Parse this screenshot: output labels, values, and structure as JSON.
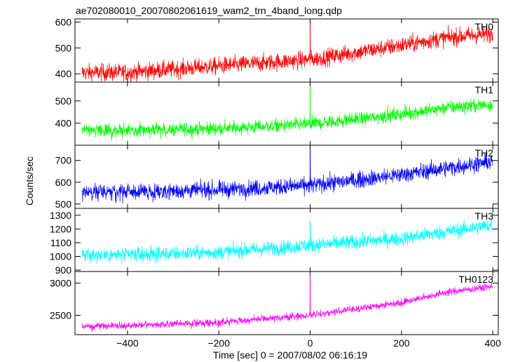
{
  "chart_data": {
    "type": "line",
    "title": "ae702080010_20070802061619_wam2_trn_4band_long.qdp",
    "xlabel": "Time [sec] 0 = 2007/08/02 06:16:19",
    "ylabel": "Counts/sec",
    "xlim": [
      -515,
      412
    ],
    "x_ticks": [
      "-400",
      "-200",
      "0",
      "200",
      "400"
    ],
    "grid": false,
    "panels": [
      {
        "name": "TH0",
        "color": "#ff0000",
        "ylim": [
          368,
          612
        ],
        "y_ticks": [
          "400",
          "500",
          "600"
        ],
        "trend": [
          [
            -500,
            405
          ],
          [
            -400,
            405
          ],
          [
            -200,
            430
          ],
          [
            0,
            455
          ],
          [
            200,
            510
          ],
          [
            300,
            540
          ],
          [
            400,
            555
          ]
        ],
        "noise": 24,
        "spike": {
          "x": 0,
          "y": 612
        }
      },
      {
        "name": "TH1",
        "color": "#00ff00",
        "ylim": [
          300,
          585
        ],
        "y_ticks": [
          "400",
          "500"
        ],
        "trend": [
          [
            -500,
            365
          ],
          [
            -400,
            365
          ],
          [
            -200,
            375
          ],
          [
            0,
            395
          ],
          [
            200,
            440
          ],
          [
            300,
            470
          ],
          [
            400,
            485
          ]
        ],
        "noise": 22,
        "spike": {
          "x": 0,
          "y": 585
        }
      },
      {
        "name": "TH2",
        "color": "#0000ff",
        "ylim": [
          480,
          770
        ],
        "y_ticks": [
          "500",
          "600",
          "700"
        ],
        "trend": [
          [
            -500,
            555
          ],
          [
            -400,
            555
          ],
          [
            -200,
            565
          ],
          [
            0,
            585
          ],
          [
            200,
            635
          ],
          [
            300,
            665
          ],
          [
            400,
            695
          ]
        ],
        "noise": 27,
        "spike": {
          "x": 0,
          "y": 770
        }
      },
      {
        "name": "TH3",
        "color": "#00ffff",
        "ylim": [
          890,
          1350
        ],
        "y_ticks": [
          "900",
          "1000",
          "1100",
          "1200",
          "1300"
        ],
        "trend": [
          [
            -500,
            1010
          ],
          [
            -400,
            1010
          ],
          [
            -200,
            1030
          ],
          [
            0,
            1080
          ],
          [
            200,
            1130
          ],
          [
            300,
            1180
          ],
          [
            400,
            1230
          ]
        ],
        "noise": 38,
        "spike": {
          "x": 0,
          "y": 1260
        }
      },
      {
        "name": "TH0123",
        "color": "#ff00ff",
        "ylim": [
          2200,
          3180
        ],
        "y_ticks": [
          "2500",
          "3000"
        ],
        "trend": [
          [
            -500,
            2330
          ],
          [
            -400,
            2340
          ],
          [
            -200,
            2390
          ],
          [
            0,
            2500
          ],
          [
            200,
            2700
          ],
          [
            300,
            2860
          ],
          [
            400,
            2950
          ]
        ],
        "noise": 40,
        "spike": {
          "x": 0,
          "y": 3110
        }
      }
    ]
  }
}
